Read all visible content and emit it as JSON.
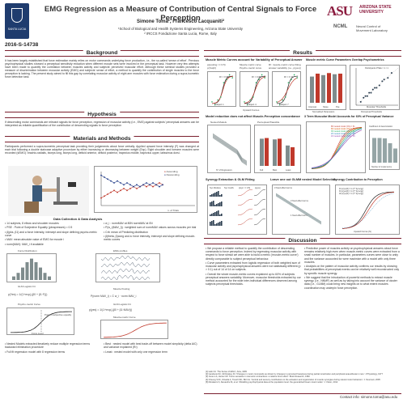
{
  "header": {
    "title": "EMG Regression as a Measure of Contribution of Central Signals to Force Perception",
    "authors": "Simone Toma¹, Francesco Lacquaniti²",
    "affil1": "¹School of Biological and Health Systems Engineering, Arizona State University",
    "affil2": "² IRCCS Fondazione Santa Lucia, Rome, Italy",
    "poster_id": "2016-S-14738",
    "left_logo_label": "SANTA LUCIA",
    "asu_big": "ASU",
    "asu_small_1": "ARIZONA STATE",
    "asu_small_2": "UNIVERSITY",
    "ncml": "NCML",
    "ncml_sub_1": "Neural Control of",
    "ncml_sub_2": "Movement Laboratory"
  },
  "sections": {
    "background": "Background",
    "results": "Results",
    "hypothesis": "Hypothesis",
    "materials": "Materials and Methods",
    "discussion": "Discussion"
  },
  "background_text": "It has been largely established that force estimation mainly relies on motor commands underlying force production, i.e., the so-called 'sense of effort'. Previous psychophysical studies showed a perceptual sensitivity reduction when different muscle sets were involved in the perceptual task. However very few attempts have been made to quantify the correlation between muscles activity and subjects' perceived muscular effort. Although these seminal studies provided a measure of discrimination between muscular activity (EMG) and subjects' sense of effort, a method to quantify the contribution of single muscles to the force perception is lacking. The present study aimed to fill this gap by correlating muscular activity of eight arm muscles with force estimation during a supra-isometric force detection task.",
  "hypothesis_text": "If descending motor commands are relevant signals for force perception, regression of muscular activity (i.e., EMG) against subjects' perceptual answers can be interpreted as reliable quantification of the contribution of descending signals to force perception",
  "materials_text": "Participants performed a supra-isometric perceptual task providing their judgements about force verbally. Applied upward force intensity (F) was changed at each trial following a double staircase adaptive procedure by either increasing or decreasing between weight (Exp). Eight shoulder and forearm muscles were recorded (sEMG): brachio-radialis, biceps long, biceps long, deltoid anterior, deltoid posterior, trapezius middle, trapezius upper, latissimus dorsi.",
  "exp_plot": {
    "legend_asc": "Ascending",
    "legend_desc": "Descending",
    "xlabel": "n. of Trials"
  },
  "data_collection": {
    "title": "Data Collection & Data Analysis",
    "col1": [
      "• 14 subjects, 8 elbow and shoulder muscles",
      "• PSE : Point of Subjective Equality (pbrapresses) = 0.5",
      "• β(pks, β1) and a force intensity, intercept and slope defining psycho-metric curve",
      "• MAV: mean absolute value of EMG for muscle i",
      "• norm(MAV): MAV_i if available"
    ],
    "col2": [
      "• w_i : normMAV at 80N normMAV at 0N",
      "• P(w_i(MAV_i)) : weighted sum of normMAV values across muscles per trial",
      "• Crit: mean of Predicting distribution",
      "• β(theta, β)cong and a: force intensity, intercept and slope defining muscle-metric curves"
    ]
  },
  "methods_panels": {
    "force": "Force Distribution",
    "emg": "EMG profiles",
    "glm_logistic": "GLM Logistic Fit",
    "muscle_pooling": "Muscle Pooling",
    "psycho": "Psycho-metric Curve",
    "muscle_curve": "Muscle-metric Curve",
    "pse_label": "Point of subjective equality",
    "force_level": "Force Level",
    "formula1": "p(Yes) = 1/(1+exp(-(β0 + β1·F)))",
    "formula2": "P(norm MAV_i) = Σ w_i · norm MAV_i",
    "formula3": "p(yes) = 1/(1+exp(-(β0 + β1·MAV)))",
    "bullet_a": "• Nested Models extracted iteratively reduce multiple regression terms backward elimination procedure",
    "bullet_b": "• Full fit regression model with 8 regression terms",
    "bullet_c": "• Best : nested model with best trade-off between model simplicity (delta AIC) and variance explained (R²)",
    "bullet_d": "• Least : nested model with only one regression term"
  },
  "results_panels": {
    "muscle_curves_title": "Muscle Metric Curves account for Variability of Perceptual Answer",
    "legend_1": "p(pooling >= 0.5)",
    "legend_2": "p(Yes|F)",
    "legend_3": "Muscle metric curve",
    "legend_4": "Psycho-metric curve",
    "legend_5": "R²: muscle-metric curve fitting",
    "legend_6": "answer variability (i.e., p(yes))",
    "subj1": "Subject 1",
    "subj2": "Subject 4",
    "subj3": "Subject 7",
    "r1": "R² = 0.95",
    "r2": "R² = 0.89",
    "r3": "R² = 0.71",
    "upward_forces": "Upward Forces",
    "probability": "Probability",
    "overlap_title": "Muscle metric Curve Parameters Overlap Psychometrics",
    "intercept": "Intercept",
    "slope": "Slope",
    "pse": "Pse",
    "participant_pses": "Participants PSEs = 1 / 1",
    "perceptual_thresholds": "Perceptual Thresholds",
    "muscular_thresholds": "Muscular Thresholds",
    "normalized_params": "Normalized Parameters",
    "reduction_title": "Model reduction does not affect Muscle-Perception concordance",
    "nested_models": "Nested Models",
    "perceptual_plausible": "Perceptual Plausible",
    "full": "Full",
    "best": "Best",
    "least": "Least",
    "n_regressors": "N° of Regressors",
    "three_muscle_title": "3 Term Muscular Model Accounts for 60% of Perceptual Variance",
    "three_muscle_legend_1": "8th nested model | R²p = 61",
    "three_muscle_legend_2": "6th nested model | R²p = 61",
    "three_muscle_legend_3": "3th nested model | R²p = 60",
    "three_muscle_legend_4": "2th nested model | R²p = 48",
    "three_muscle_legend_5": "1th nested model | R²p = 35",
    "coefficient_label": "Coefficient of determination",
    "number_of_model_terms": "Number of model terms",
    "synergy_title": "Synergy Extraction & GLM Fitting",
    "syn_labels": [
      "Syn Modules",
      "Syn Coeffs",
      "p(syn >= 0.5)",
      "p(yes)"
    ],
    "loo_title": "Leave one out GLMM nested Model Selection",
    "fixed_terms": "3 fixed effect terms",
    "fixed_terms_b": "3 fixed effect terms",
    "fixed_terms_c": "1 fixed effect term",
    "syn_contrib_title": "Synergy Contribution to Perception",
    "syn_legend_1": "Fit p(syn|F) ± 1 (2^ Synergy)",
    "syn_legend_2": "Fit p(yes|F) ± 1 (2^ Synergy)",
    "syn_legend_3": "All p(syn|F) ± 1 (2^ Synergy)",
    "upward_forces_n": "Upward Forces (N)"
  },
  "discussion": {
    "col1": [
      "• We propose a reliable method to quantify the contribution of descending commands to force perception. Indeed by regressing muscular activity with respect to force stimuli we were able to build a metric ('muscle-metric curve') directly comparable to subject perceptual behaviour.",
      "• Curve parameters extracted from logistic regression of both weighted sum of muscular activity and psychophysical answers were not statistically different (p > 0.1) out of 14 of 14 on subjects.",
      "• Overall the whole muscle-metric curves explained up to 60% of subjects perceptual answers variability. Moreover, muscular thresholds extracted by our method accounted for the wide inter-individual differences observed among subjects perceptual thresholds."
    ],
    "col2": [
      "• Predictive power of muscles activity on psychophysical answers about force remains relatively high even when muscle-metric curves were extracted from a small number of muscles. In particular, parameters curves were close to unity and the variance accounted for were maximize with a model with only three muscles.",
      "• Analysis on the pattern of muscular activity confirms our results by showing that probabilities of perceptual events can be relatively well reconstructed only by specific muscle synergy.",
      "• We suggest that the introduction of powerful methods to extract muscle synergy (i.e., NNMF) as well as by taking into account the variance of cluster data (i.e., GLMM) could bring new insights on to what extent muscles coordination may underpin force perception."
    ],
    "refs": [
      "[1] Helm M. 'The Sense of Effort', Acta, 1965",
      "[2] Gandevia SC, McCloskey DI. 'Changes in motor commands as shown by changes in perceived heaviness during partial curarization and peripheral anaesthesia in man.' J Physiology, 1977",
      "[3] Jones LA, Hunter IW. 'Force sensation in isometric contractions: a relative force effect.' Brain Research, 1982",
      "[4] Cheung VCK, d'Avella A, Tresch MC, Bizzi E. 'Central and sensory contributions to the activation and organization of muscle synergies during natural motor behaviors.' J. Neurosci, 2005",
      "[5] Murakami K, Alexandre M, et al. 'Modelling psychophysical data at the population level: the generalized linear mixed model.' J. Vision, 2012"
    ]
  },
  "contact": "Contact info: simone.toma@asu.edu",
  "chart_data": [
    {
      "type": "line",
      "title": "",
      "xlabel": "n. of Trials",
      "ylabel": "",
      "series": [
        {
          "name": "Ascending",
          "values": [
            4,
            5,
            6,
            7,
            8,
            7,
            8,
            9,
            8,
            9,
            10,
            9,
            10,
            11,
            10,
            11,
            10,
            11,
            12,
            11
          ]
        },
        {
          "name": "Descending",
          "values": [
            16,
            15,
            14,
            13,
            12,
            13,
            12,
            11,
            12,
            11,
            10,
            11,
            10,
            11,
            12,
            11,
            12,
            11,
            10,
            11
          ]
        }
      ]
    },
    {
      "type": "scatter",
      "xlabel": "Perceptual Thresholds",
      "ylabel": "Muscular Thresholds",
      "x": [
        15,
        18,
        20,
        22,
        24,
        26,
        28,
        30,
        32,
        35,
        38,
        40,
        44,
        48
      ],
      "y": [
        14,
        19,
        21,
        21,
        25,
        25,
        29,
        31,
        31,
        34,
        39,
        41,
        43,
        49
      ]
    }
  ]
}
